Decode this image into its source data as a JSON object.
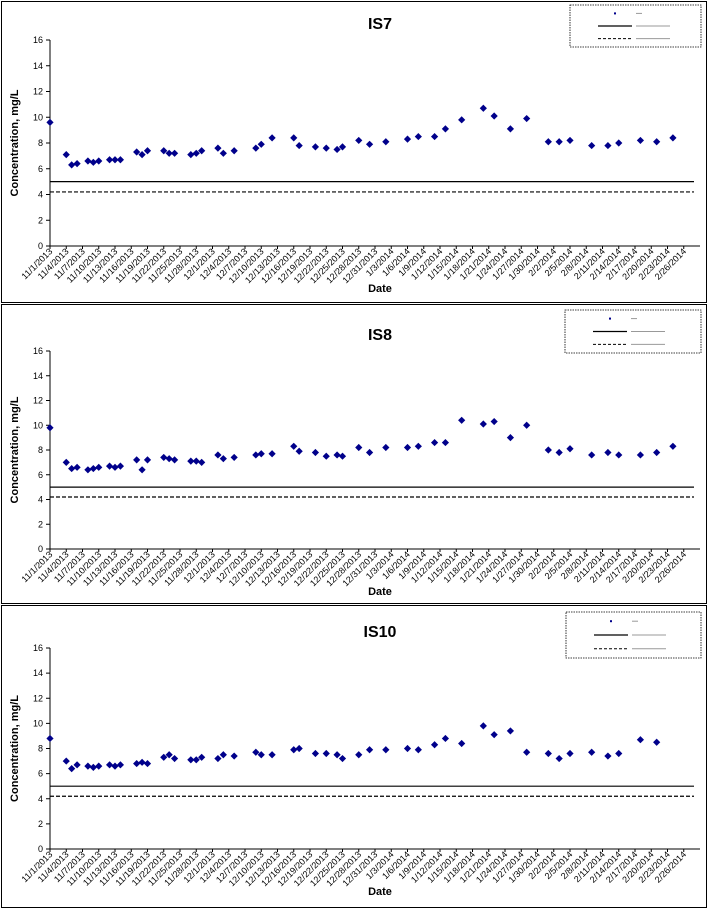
{
  "chart_data": [
    {
      "type": "scatter",
      "title": "IS7",
      "xlabel": "Date",
      "ylabel": "Concentration, mg/L",
      "ylim": [
        0,
        16
      ],
      "yticks": [
        "0",
        "2",
        "4",
        "6",
        "8",
        "10",
        "12",
        "14",
        "16"
      ],
      "xtick_labels": [
        "11/1/2013",
        "11/4/2013",
        "11/7/2013",
        "11/10/2013",
        "11/13/2013",
        "11/16/2013",
        "11/19/2013",
        "11/22/2013",
        "11/25/2013",
        "11/28/2013",
        "12/1/2013",
        "12/4/2013",
        "12/7/2013",
        "12/10/2013",
        "12/13/2013",
        "12/16/2013",
        "12/19/2013",
        "12/22/2013",
        "12/25/2013",
        "12/28/2013",
        "12/31/2013",
        "1/3/2014",
        "1/6/2014",
        "1/9/2014",
        "1/12/2014",
        "1/15/2014",
        "1/18/2014",
        "1/21/2014",
        "1/24/2014",
        "1/27/2014",
        "1/30/2014",
        "2/2/2014",
        "2/5/2014",
        "2/8/2014",
        "2/11/2014",
        "2/14/2014",
        "2/17/2014",
        "2/20/2014",
        "2/23/2014",
        "2/26/2014"
      ],
      "x": [
        "11/1/2013",
        "11/4/2013",
        "11/5/2013",
        "11/6/2013",
        "11/8/2013",
        "11/9/2013",
        "11/10/2013",
        "11/12/2013",
        "11/13/2013",
        "11/14/2013",
        "11/17/2013",
        "11/18/2013",
        "11/19/2013",
        "11/22/2013",
        "11/23/2013",
        "11/24/2013",
        "11/27/2013",
        "11/28/2013",
        "11/29/2013",
        "12/1/2013",
        "12/2/2013",
        "12/3/2013",
        "12/5/2013",
        "12/6/2013",
        "12/9/2013",
        "12/10/2013",
        "12/12/2013",
        "12/13/2013",
        "12/14/2013",
        "12/16/2013",
        "12/17/2013",
        "12/20/2013",
        "12/21/2013",
        "12/22/2013",
        "12/24/2013",
        "12/25/2013",
        "12/26/2013",
        "12/28/2013",
        "12/29/2013",
        "12/30/2013",
        "1/2/2014",
        "1/3/2014",
        "1/4/2014",
        "1/6/2014",
        "1/7/2014",
        "1/8/2014",
        "1/11/2014",
        "1/12/2014",
        "1/13/2014",
        "1/15/2014",
        "1/16/2014",
        "1/17/2014",
        "1/20/2014",
        "1/21/2014",
        "1/22/2014",
        "1/24/2014",
        "1/25/2014",
        "1/26/2014",
        "1/28/2014",
        "1/29/2014",
        "1/30/2014",
        "2/1/2014",
        "2/2/2014",
        "2/3/2014",
        "2/5/2014",
        "2/6/2014",
        "2/7/2014",
        "2/9/2014",
        "2/10/2014",
        "2/12/2014",
        "2/13/2014",
        "2/14/2014",
        "2/16/2014",
        "2/17/2014",
        "2/18/2014",
        "2/20/2014",
        "2/21/2014",
        "2/23/2014",
        "2/24/2014",
        "2/25/2014",
        "2/27/2014",
        "2/28/2014"
      ],
      "series": [
        {
          "name": "",
          "type": "scatter",
          "color": "#00008b",
          "points": [
            [
              "11/1/2013",
              9.6
            ],
            [
              "11/4/2013",
              7.1
            ],
            [
              "11/5/2013",
              6.3
            ],
            [
              "11/6/2013",
              6.4
            ],
            [
              "11/8/2013",
              6.6
            ],
            [
              "11/9/2013",
              6.5
            ],
            [
              "11/10/2013",
              6.6
            ],
            [
              "11/12/2013",
              6.7
            ],
            [
              "11/13/2013",
              6.7
            ],
            [
              "11/14/2013",
              6.7
            ],
            [
              "11/17/2013",
              7.3
            ],
            [
              "11/18/2013",
              7.1
            ],
            [
              "11/19/2013",
              7.4
            ],
            [
              "11/22/2013",
              7.4
            ],
            [
              "11/23/2013",
              7.2
            ],
            [
              "11/24/2013",
              7.2
            ],
            [
              "11/27/2013",
              7.1
            ],
            [
              "11/28/2013",
              7.2
            ],
            [
              "11/29/2013",
              7.4
            ],
            [
              "12/2/2013",
              7.6
            ],
            [
              "12/3/2013",
              7.2
            ],
            [
              "12/5/2013",
              7.4
            ],
            [
              "12/9/2013",
              7.6
            ],
            [
              "12/10/2013",
              7.9
            ],
            [
              "12/12/2013",
              8.4
            ],
            [
              "12/16/2013",
              8.4
            ],
            [
              "12/17/2013",
              7.8
            ],
            [
              "12/20/2013",
              7.7
            ],
            [
              "12/22/2013",
              7.6
            ],
            [
              "12/24/2013",
              7.5
            ],
            [
              "12/25/2013",
              7.7
            ],
            [
              "12/28/2013",
              8.2
            ],
            [
              "12/30/2013",
              7.9
            ],
            [
              "1/2/2014",
              8.1
            ],
            [
              "1/6/2014",
              8.3
            ],
            [
              "1/8/2014",
              8.5
            ],
            [
              "1/11/2014",
              8.5
            ],
            [
              "1/13/2014",
              9.1
            ],
            [
              "1/16/2014",
              9.8
            ],
            [
              "1/20/2014",
              10.7
            ],
            [
              "1/22/2014",
              10.1
            ],
            [
              "1/25/2014",
              9.1
            ],
            [
              "1/28/2014",
              9.9
            ],
            [
              "2/1/2014",
              8.1
            ],
            [
              "2/3/2014",
              8.1
            ],
            [
              "2/5/2014",
              8.2
            ],
            [
              "2/9/2014",
              7.8
            ],
            [
              "2/12/2014",
              7.8
            ],
            [
              "2/14/2014",
              8.0
            ],
            [
              "2/18/2014",
              8.2
            ],
            [
              "2/21/2014",
              8.1
            ],
            [
              "2/24/2014",
              8.4
            ]
          ]
        },
        {
          "name": "",
          "type": "line",
          "style": "solid",
          "value": 5.0
        },
        {
          "name": "",
          "type": "line",
          "style": "dashed",
          "value": 4.2
        }
      ],
      "legend_position": "top-right"
    },
    {
      "type": "scatter",
      "title": "IS8",
      "xlabel": "Date",
      "ylabel": "Concentration, mg/L",
      "ylim": [
        0,
        16
      ],
      "yticks": [
        "0",
        "2",
        "4",
        "6",
        "8",
        "10",
        "12",
        "14",
        "16"
      ],
      "xtick_labels": [
        "11/1/2013",
        "11/4/2013",
        "11/7/2013",
        "11/10/2013",
        "11/13/2013",
        "11/16/2013",
        "11/19/2013",
        "11/22/2013",
        "11/25/2013",
        "11/28/2013",
        "12/1/2013",
        "12/4/2013",
        "12/7/2013",
        "12/10/2013",
        "12/13/2013",
        "12/16/2013",
        "12/19/2013",
        "12/22/2013",
        "12/25/2013",
        "12/28/2013",
        "12/31/2013",
        "1/3/2014",
        "1/6/2014",
        "1/9/2014",
        "1/12/2014",
        "1/15/2014",
        "1/18/2014",
        "1/21/2014",
        "1/24/2014",
        "1/27/2014",
        "1/30/2014",
        "2/2/2014",
        "2/5/2014",
        "2/8/2014",
        "2/11/2014",
        "2/14/2014",
        "2/17/2014",
        "2/20/2014",
        "2/23/2014",
        "2/26/2014"
      ],
      "series": [
        {
          "name": "",
          "type": "scatter",
          "color": "#00008b",
          "points": [
            [
              "11/1/2013",
              9.8
            ],
            [
              "11/4/2013",
              7.0
            ],
            [
              "11/5/2013",
              6.5
            ],
            [
              "11/6/2013",
              6.6
            ],
            [
              "11/8/2013",
              6.4
            ],
            [
              "11/9/2013",
              6.5
            ],
            [
              "11/10/2013",
              6.6
            ],
            [
              "11/12/2013",
              6.7
            ],
            [
              "11/13/2013",
              6.6
            ],
            [
              "11/14/2013",
              6.7
            ],
            [
              "11/17/2013",
              7.2
            ],
            [
              "11/18/2013",
              6.4
            ],
            [
              "11/19/2013",
              7.2
            ],
            [
              "11/22/2013",
              7.4
            ],
            [
              "11/23/2013",
              7.3
            ],
            [
              "11/24/2013",
              7.2
            ],
            [
              "11/27/2013",
              7.1
            ],
            [
              "11/28/2013",
              7.1
            ],
            [
              "11/29/2013",
              7.0
            ],
            [
              "12/2/2013",
              7.6
            ],
            [
              "12/3/2013",
              7.3
            ],
            [
              "12/5/2013",
              7.4
            ],
            [
              "12/9/2013",
              7.6
            ],
            [
              "12/10/2013",
              7.7
            ],
            [
              "12/12/2013",
              7.7
            ],
            [
              "12/16/2013",
              8.3
            ],
            [
              "12/17/2013",
              7.9
            ],
            [
              "12/20/2013",
              7.8
            ],
            [
              "12/22/2013",
              7.5
            ],
            [
              "12/24/2013",
              7.6
            ],
            [
              "12/25/2013",
              7.5
            ],
            [
              "12/28/2013",
              8.2
            ],
            [
              "12/30/2013",
              7.8
            ],
            [
              "1/2/2014",
              8.2
            ],
            [
              "1/6/2014",
              8.2
            ],
            [
              "1/8/2014",
              8.3
            ],
            [
              "1/11/2014",
              8.6
            ],
            [
              "1/13/2014",
              8.6
            ],
            [
              "1/16/2014",
              10.4
            ],
            [
              "1/20/2014",
              10.1
            ],
            [
              "1/22/2014",
              10.3
            ],
            [
              "1/25/2014",
              9.0
            ],
            [
              "1/28/2014",
              10.0
            ],
            [
              "2/1/2014",
              8.0
            ],
            [
              "2/3/2014",
              7.8
            ],
            [
              "2/5/2014",
              8.1
            ],
            [
              "2/9/2014",
              7.6
            ],
            [
              "2/12/2014",
              7.8
            ],
            [
              "2/14/2014",
              7.6
            ],
            [
              "2/18/2014",
              7.6
            ],
            [
              "2/21/2014",
              7.8
            ],
            [
              "2/24/2014",
              8.3
            ]
          ]
        },
        {
          "name": "",
          "type": "line",
          "style": "solid",
          "value": 5.0
        },
        {
          "name": "",
          "type": "line",
          "style": "dashed",
          "value": 4.2
        }
      ],
      "legend_position": "top-right"
    },
    {
      "type": "scatter",
      "title": "IS10",
      "xlabel": "Date",
      "ylabel": "Concentration, mg/L",
      "ylim": [
        0,
        16
      ],
      "yticks": [
        "0",
        "2",
        "4",
        "6",
        "8",
        "10",
        "12",
        "14",
        "16"
      ],
      "xtick_labels": [
        "11/1/2013",
        "11/4/2013",
        "11/7/2013",
        "11/10/2013",
        "11/13/2013",
        "11/16/2013",
        "11/19/2013",
        "11/22/2013",
        "11/25/2013",
        "11/28/2013",
        "12/1/2013",
        "12/4/2013",
        "12/7/2013",
        "12/10/2013",
        "12/13/2013",
        "12/16/2013",
        "12/19/2013",
        "12/22/2013",
        "12/25/2013",
        "12/28/2013",
        "12/31/2013",
        "1/3/2014",
        "1/6/2014",
        "1/9/2014",
        "1/12/2014",
        "1/15/2014",
        "1/18/2014",
        "1/21/2014",
        "1/24/2014",
        "1/27/2014",
        "1/30/2014",
        "2/2/2014",
        "2/5/2014",
        "2/8/2014",
        "2/11/2014",
        "2/14/2014",
        "2/17/2014",
        "2/20/2014",
        "2/23/2014",
        "2/26/2014"
      ],
      "series": [
        {
          "name": "",
          "type": "scatter",
          "color": "#00008b",
          "points": [
            [
              "11/1/2013",
              8.8
            ],
            [
              "11/4/2013",
              7.0
            ],
            [
              "11/5/2013",
              6.4
            ],
            [
              "11/6/2013",
              6.7
            ],
            [
              "11/8/2013",
              6.6
            ],
            [
              "11/9/2013",
              6.5
            ],
            [
              "11/10/2013",
              6.6
            ],
            [
              "11/12/2013",
              6.7
            ],
            [
              "11/13/2013",
              6.6
            ],
            [
              "11/14/2013",
              6.7
            ],
            [
              "11/17/2013",
              6.8
            ],
            [
              "11/18/2013",
              6.9
            ],
            [
              "11/19/2013",
              6.8
            ],
            [
              "11/22/2013",
              7.3
            ],
            [
              "11/23/2013",
              7.5
            ],
            [
              "11/24/2013",
              7.2
            ],
            [
              "11/27/2013",
              7.1
            ],
            [
              "11/28/2013",
              7.1
            ],
            [
              "11/29/2013",
              7.3
            ],
            [
              "12/2/2013",
              7.2
            ],
            [
              "12/3/2013",
              7.5
            ],
            [
              "12/5/2013",
              7.4
            ],
            [
              "12/9/2013",
              7.7
            ],
            [
              "12/10/2013",
              7.5
            ],
            [
              "12/12/2013",
              7.5
            ],
            [
              "12/16/2013",
              7.9
            ],
            [
              "12/17/2013",
              8.0
            ],
            [
              "12/20/2013",
              7.6
            ],
            [
              "12/22/2013",
              7.6
            ],
            [
              "12/24/2013",
              7.5
            ],
            [
              "12/25/2013",
              7.2
            ],
            [
              "12/28/2013",
              7.5
            ],
            [
              "12/30/2013",
              7.9
            ],
            [
              "1/2/2014",
              7.9
            ],
            [
              "1/6/2014",
              8.0
            ],
            [
              "1/8/2014",
              7.9
            ],
            [
              "1/11/2014",
              8.3
            ],
            [
              "1/13/2014",
              8.8
            ],
            [
              "1/16/2014",
              8.4
            ],
            [
              "1/20/2014",
              9.8
            ],
            [
              "1/22/2014",
              9.1
            ],
            [
              "1/25/2014",
              9.4
            ],
            [
              "1/28/2014",
              7.7
            ],
            [
              "2/1/2014",
              7.6
            ],
            [
              "2/3/2014",
              7.2
            ],
            [
              "2/5/2014",
              7.6
            ],
            [
              "2/9/2014",
              7.7
            ],
            [
              "2/12/2014",
              7.4
            ],
            [
              "2/14/2014",
              7.6
            ],
            [
              "2/18/2014",
              8.7
            ],
            [
              "2/21/2014",
              8.5
            ]
          ]
        },
        {
          "name": "",
          "type": "line",
          "style": "solid",
          "value": 5.0
        },
        {
          "name": "",
          "type": "line",
          "style": "dashed",
          "value": 4.2
        }
      ],
      "legend_position": "top-right"
    }
  ]
}
